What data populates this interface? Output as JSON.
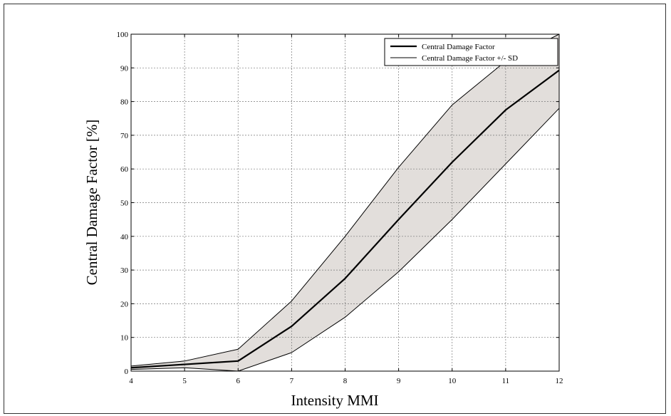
{
  "chart_data": {
    "type": "line",
    "xlabel": "Intensity MMI",
    "ylabel": "Central Damage Factor [%]",
    "xlim": [
      4,
      12
    ],
    "ylim": [
      0,
      100
    ],
    "x_ticks": [
      4,
      5,
      6,
      7,
      8,
      9,
      10,
      11,
      12
    ],
    "y_ticks": [
      0,
      10,
      20,
      30,
      40,
      50,
      60,
      70,
      80,
      90,
      100
    ],
    "grid": true,
    "legend_position": "top-right",
    "legend": [
      "Central Damage Factor",
      "Central Damage Factor +/- SD"
    ],
    "x": [
      4,
      5,
      6,
      7,
      8,
      9,
      10,
      11,
      12
    ],
    "series": [
      {
        "name": "Central Damage Factor",
        "values": [
          1.0,
          2.0,
          3.0,
          13.3,
          27.5,
          45.0,
          62.0,
          77.5,
          89.3
        ],
        "color": "#000000"
      },
      {
        "role": "upper",
        "values": [
          1.5,
          3.0,
          6.5,
          20.8,
          40.0,
          60.5,
          79.0,
          92.0,
          100.0
        ],
        "color": "#000000"
      },
      {
        "role": "lower",
        "values": [
          0.5,
          1.0,
          0.0,
          5.5,
          16.0,
          29.5,
          45.0,
          61.5,
          78.0
        ],
        "color": "#000000"
      }
    ],
    "band_fill": "#e2dedb"
  }
}
